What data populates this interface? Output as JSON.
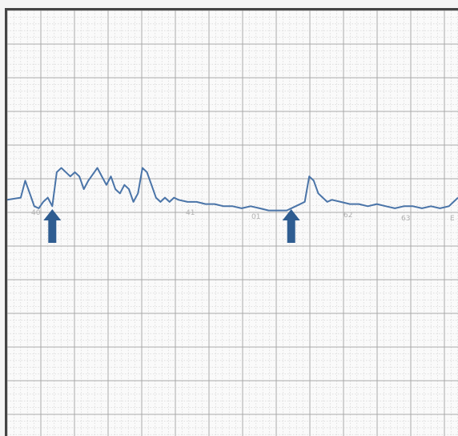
{
  "chart_data": {
    "type": "line",
    "title": "",
    "xlabel": "",
    "ylabel": "",
    "grid": true,
    "colors": {
      "trace": "#4a74a8",
      "arrow": "#2f5d91",
      "grid_minor": "#cfcfcf",
      "grid_major": "#a9a9a9"
    },
    "x_range": [
      0,
      100
    ],
    "y_range": [
      0,
      100
    ],
    "series": [
      {
        "x": [
          0,
          3,
          4,
          5,
          6,
          7,
          8,
          9,
          10,
          11,
          12,
          13,
          14,
          15,
          16,
          17,
          18,
          20,
          21,
          22,
          23,
          24,
          25,
          26,
          27,
          28,
          29,
          30,
          31,
          32,
          33,
          34,
          35,
          36,
          37,
          38,
          40,
          42,
          44,
          46,
          48,
          50,
          52,
          54,
          56,
          58,
          60,
          62,
          64,
          66,
          67,
          68,
          69,
          70,
          71,
          72,
          74,
          76,
          78,
          80,
          82,
          84,
          86,
          88,
          90,
          92,
          94,
          96,
          98,
          100
        ],
        "y": [
          55.5,
          56,
          60,
          57,
          54,
          53.5,
          55,
          56,
          54,
          62,
          63,
          62,
          61,
          62,
          61,
          58,
          60,
          63,
          61,
          59,
          61,
          58,
          57,
          59,
          58,
          55,
          57,
          63,
          62,
          59,
          56,
          55,
          56,
          55,
          56,
          55.5,
          55,
          55,
          54.5,
          54.5,
          54,
          54,
          53.5,
          54,
          53.5,
          53,
          53,
          53,
          54,
          55,
          61,
          60,
          57,
          56,
          55,
          55.5,
          55,
          54.5,
          54.5,
          54,
          54.5,
          54,
          53.5,
          54,
          54,
          53.5,
          54,
          53.5,
          54,
          56
        ]
      }
    ],
    "annotations": [
      {
        "type": "arrow",
        "direction": "up",
        "x": 10
      },
      {
        "type": "arrow",
        "direction": "up",
        "x": 63
      }
    ],
    "tick_labels": [
      "40",
      "41",
      "01",
      "62",
      "63",
      "E"
    ]
  }
}
